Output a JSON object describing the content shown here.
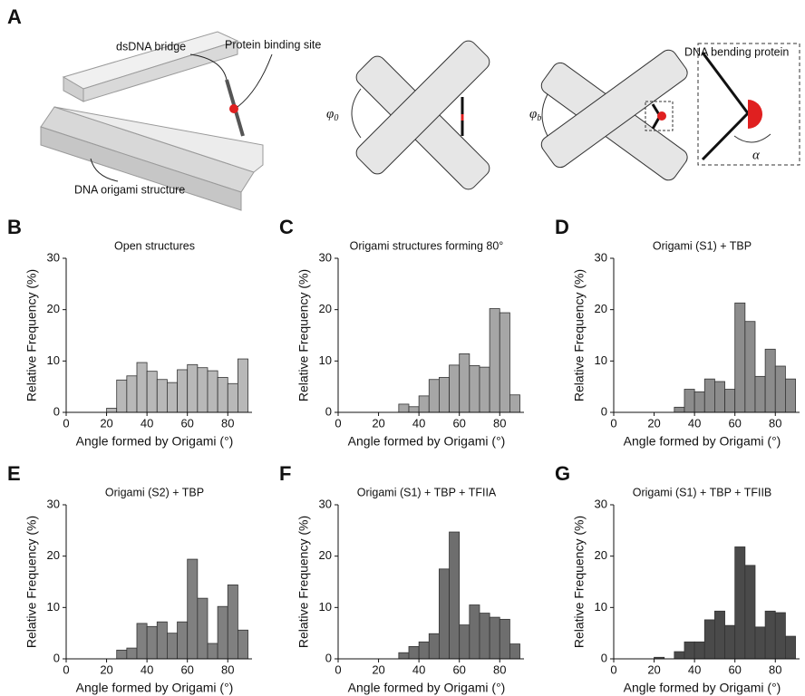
{
  "diagram": {
    "panel": "A",
    "bridge_label": "dsDNA bridge",
    "site_label": "Protein binding site",
    "structure_label": "DNA origami structure",
    "protein_label": "DNA bending protein",
    "phi": "φ",
    "phi_open_sub": "0",
    "phi_bent_sub": "b",
    "alpha": "α"
  },
  "chart_data": [
    {
      "type": "histogram",
      "panel": "B",
      "title": "Open structures",
      "x_label": "Angle formed by Origami (°)",
      "y_label": "Relative Frequency (%)",
      "color": "#b8b8b8",
      "bins": [
        20,
        25,
        30,
        35,
        40,
        45,
        50,
        55,
        60,
        65,
        70,
        75,
        80,
        85,
        90
      ],
      "values": [
        0.8,
        6.3,
        7.1,
        9.7,
        8.0,
        6.4,
        5.8,
        8.3,
        9.3,
        8.7,
        8.1,
        6.8,
        5.6,
        10.4
      ],
      "xlim": [
        0,
        92
      ],
      "ylim": [
        0,
        30
      ],
      "xticks": [
        0,
        20,
        40,
        60,
        80
      ],
      "yticks": [
        0,
        10,
        20,
        30
      ]
    },
    {
      "type": "histogram",
      "panel": "C",
      "title": "Origami structures forming 80°",
      "x_label": "Angle formed by Origami (°)",
      "y_label": "Relative Frequency (%)",
      "color": "#a6a6a6",
      "bins": [
        20,
        25,
        30,
        35,
        40,
        45,
        50,
        55,
        60,
        65,
        70,
        75,
        80,
        85,
        90
      ],
      "values": [
        0,
        0,
        1.6,
        1.1,
        3.2,
        6.4,
        6.8,
        9.2,
        11.4,
        9.1,
        8.8,
        20.2,
        19.4,
        3.4
      ],
      "xlim": [
        0,
        92
      ],
      "ylim": [
        0,
        30
      ],
      "xticks": [
        0,
        20,
        40,
        60,
        80
      ],
      "yticks": [
        0,
        10,
        20,
        30
      ]
    },
    {
      "type": "histogram",
      "panel": "D",
      "title": "Origami (S1) + TBP",
      "x_label": "Angle formed by Origami (°)",
      "y_label": "Relative Frequency (%)",
      "color": "#8c8c8c",
      "bins": [
        20,
        25,
        30,
        35,
        40,
        45,
        50,
        55,
        60,
        65,
        70,
        75,
        80,
        85,
        90
      ],
      "values": [
        0,
        0,
        1.0,
        4.5,
        4.0,
        6.5,
        6.0,
        4.5,
        21.3,
        17.7,
        7.0,
        12.3,
        9.0,
        6.5
      ],
      "xlim": [
        0,
        92
      ],
      "ylim": [
        0,
        30
      ],
      "xticks": [
        0,
        20,
        40,
        60,
        80
      ],
      "yticks": [
        0,
        10,
        20,
        30
      ]
    },
    {
      "type": "histogram",
      "panel": "E",
      "title": "Origami (S2) + TBP",
      "x_label": "Angle formed by Origami (°)",
      "y_label": "Relative Frequency (%)",
      "color": "#808080",
      "bins": [
        20,
        25,
        30,
        35,
        40,
        45,
        50,
        55,
        60,
        65,
        70,
        75,
        80,
        85,
        90
      ],
      "values": [
        0,
        1.7,
        2.1,
        6.9,
        6.3,
        7.2,
        5.0,
        7.2,
        19.4,
        11.8,
        3.0,
        10.2,
        14.4,
        5.6
      ],
      "xlim": [
        0,
        92
      ],
      "ylim": [
        0,
        30
      ],
      "xticks": [
        0,
        20,
        40,
        60,
        80
      ],
      "yticks": [
        0,
        10,
        20,
        30
      ]
    },
    {
      "type": "histogram",
      "panel": "F",
      "title": "Origami (S1) + TBP + TFIIA",
      "x_label": "Angle formed by Origami (°)",
      "y_label": "Relative Frequency (%)",
      "color": "#6e6e6e",
      "bins": [
        20,
        25,
        30,
        35,
        40,
        45,
        50,
        55,
        60,
        65,
        70,
        75,
        80,
        85,
        90
      ],
      "values": [
        0,
        0,
        1.2,
        2.4,
        3.3,
        4.9,
        17.5,
        24.7,
        6.6,
        10.5,
        8.9,
        8.1,
        7.7,
        2.9
      ],
      "xlim": [
        0,
        92
      ],
      "ylim": [
        0,
        30
      ],
      "xticks": [
        0,
        20,
        40,
        60,
        80
      ],
      "yticks": [
        0,
        10,
        20,
        30
      ]
    },
    {
      "type": "histogram",
      "panel": "G",
      "title": "Origami (S1) + TBP + TFIIB",
      "x_label": "Angle formed by Origami (°)",
      "y_label": "Relative Frequency (%)",
      "color": "#4a4a4a",
      "bins": [
        20,
        25,
        30,
        35,
        40,
        45,
        50,
        55,
        60,
        65,
        70,
        75,
        80,
        85,
        90
      ],
      "values": [
        0.3,
        0,
        1.4,
        3.3,
        3.3,
        7.6,
        9.3,
        6.5,
        21.8,
        18.2,
        6.2,
        9.3,
        9.0,
        4.4
      ],
      "xlim": [
        0,
        92
      ],
      "ylim": [
        0,
        30
      ],
      "xticks": [
        0,
        20,
        40,
        60,
        80
      ],
      "yticks": [
        0,
        10,
        20,
        30
      ]
    }
  ]
}
